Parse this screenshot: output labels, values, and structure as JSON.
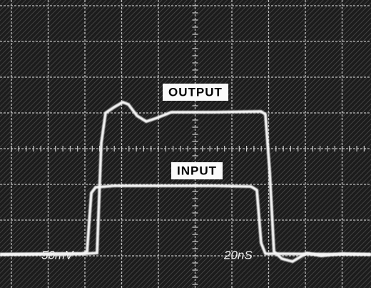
{
  "labels": {
    "output": "OUTPUT",
    "input": "INPUT",
    "volts_per_div": "50mV",
    "time_per_div": "20nS"
  }
}
